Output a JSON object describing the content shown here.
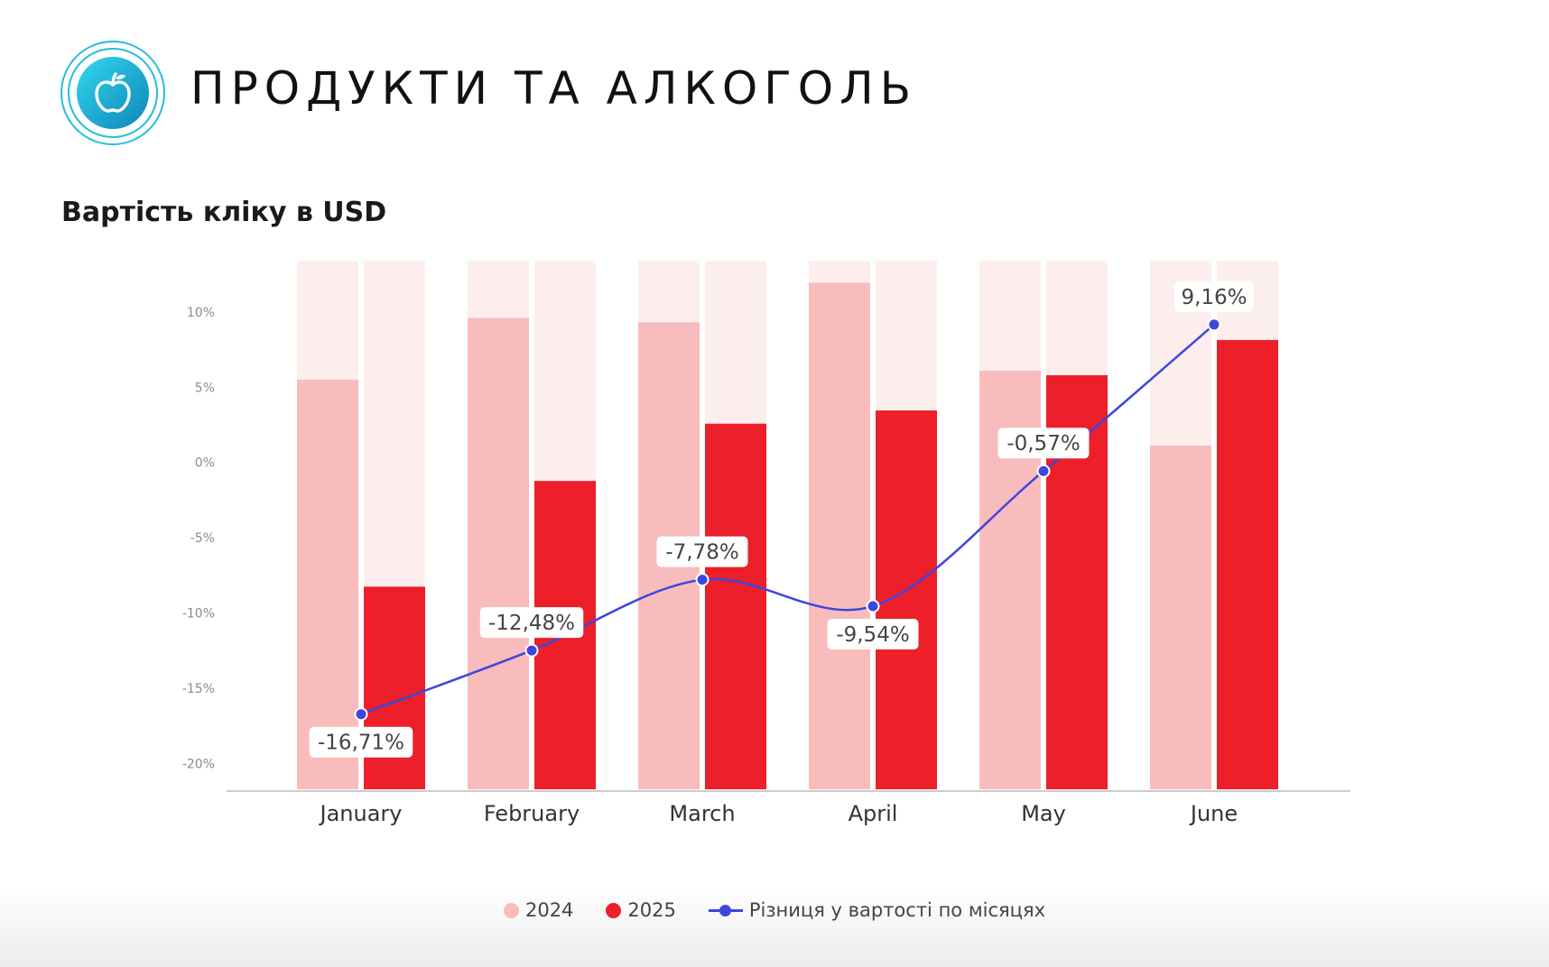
{
  "header": {
    "title": "ПРОДУКТИ ТА АЛКОГОЛЬ",
    "logo_icon": "apple-icon"
  },
  "colors": {
    "series_2024": "#f9bcbc",
    "series_2025": "#ec1f2a",
    "series_2024_bg": "#fdeeee",
    "series_2025_bg": "#fdeeee",
    "line": "#3e46de",
    "axis": "#cccccc",
    "teal": "#1fb6d9"
  },
  "chart_data": {
    "type": "bar",
    "title": "Вартість кліку в USD",
    "categories": [
      "January",
      "February",
      "March",
      "April",
      "May",
      "June"
    ],
    "series": [
      {
        "name": "2024",
        "values": [
          0.93,
          1.07,
          1.06,
          1.15,
          0.95,
          0.78
        ]
      },
      {
        "name": "2025",
        "values": [
          0.46,
          0.7,
          0.83,
          0.86,
          0.94,
          1.02
        ]
      }
    ],
    "bars_ylim": [
      0,
      1.2
    ],
    "line": {
      "name": "Різниця у вартості по місяцях",
      "values": [
        -16.71,
        -12.48,
        -7.78,
        -9.54,
        -0.57,
        9.16
      ],
      "labels": [
        "-16,71%",
        "-12,48%",
        "-7,78%",
        "-9,54%",
        "-0,57%",
        "9,16%"
      ],
      "label_side": [
        "below",
        "above",
        "above",
        "below",
        "above",
        "above"
      ]
    },
    "y_ticks": [
      {
        "value": 10,
        "label": "10%"
      },
      {
        "value": 5,
        "label": "5%"
      },
      {
        "value": 0,
        "label": "0%"
      },
      {
        "value": -5,
        "label": "-5%"
      },
      {
        "value": -10,
        "label": "-10%"
      },
      {
        "value": -15,
        "label": "-15%"
      },
      {
        "value": -20,
        "label": "-20%"
      }
    ],
    "ylim": [
      -21.7,
      14
    ],
    "grid": false,
    "legend_position": "bottom"
  }
}
